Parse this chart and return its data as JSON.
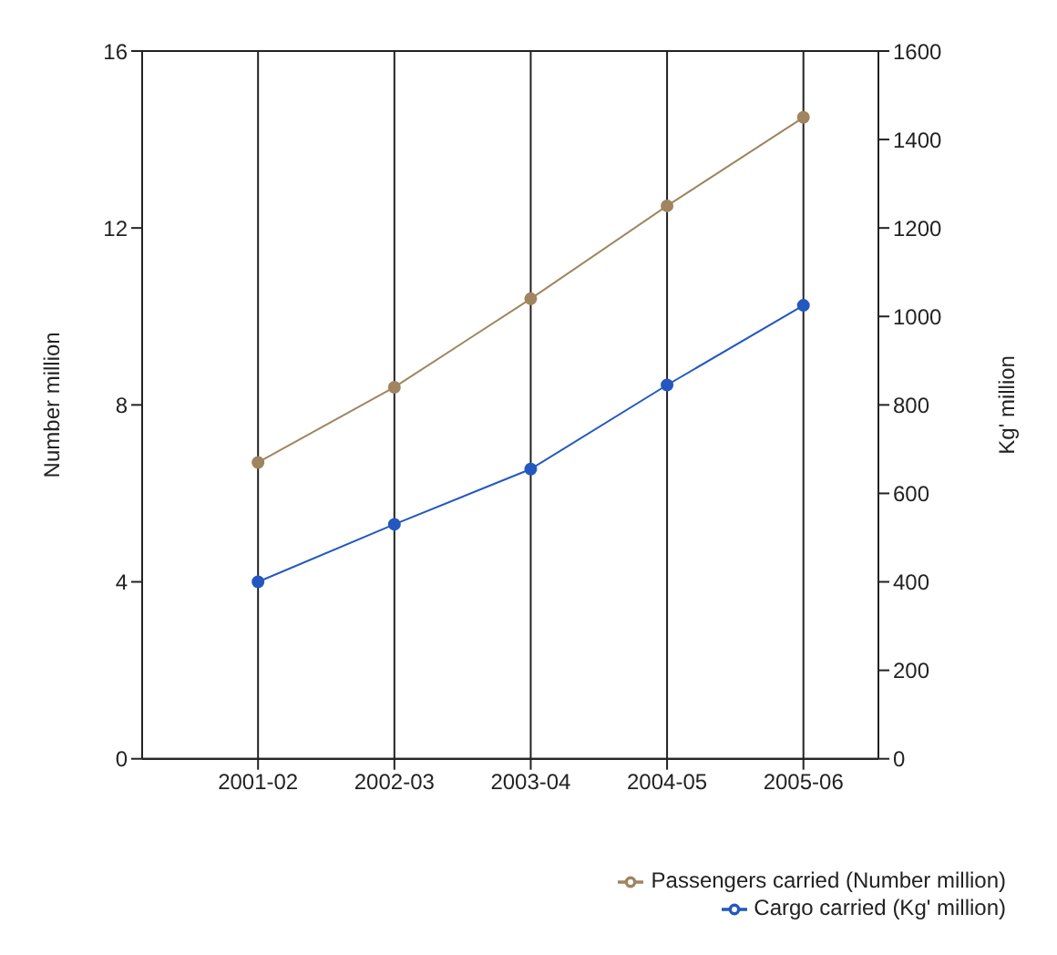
{
  "chart_data": {
    "type": "line",
    "ylabel": "Number million",
    "y2label": "Kg' million",
    "categories": [
      "2001-02",
      "2002-03",
      "2003-04",
      "2004-05",
      "2005-06"
    ],
    "series": [
      {
        "name": "Passengers carried (Number million)",
        "color": "#a08560",
        "values": [
          6.7,
          8.4,
          10.4,
          12.5,
          14.5
        ]
      },
      {
        "name": "Cargo carried (Kg' million)",
        "color": "#2458c0",
        "axis": "y2",
        "values": [
          400,
          530,
          655,
          845,
          1025
        ]
      }
    ],
    "ylim": [
      0,
      16
    ],
    "yticks": [
      0,
      4,
      8,
      12,
      16
    ],
    "y2lim": [
      0,
      1600
    ],
    "y2ticks": [
      0,
      200,
      400,
      600,
      800,
      1000,
      1200,
      1400,
      1600
    ],
    "grid": true,
    "legend": "bottom right",
    "marker": "circle",
    "line_style": "solid"
  }
}
